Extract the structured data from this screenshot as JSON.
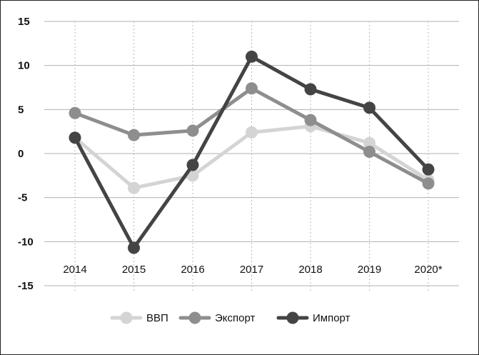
{
  "chart_data": {
    "type": "line",
    "title": "",
    "xlabel": "",
    "ylabel": "",
    "categories": [
      "2014",
      "2015",
      "2016",
      "2017",
      "2018",
      "2019",
      "2020*"
    ],
    "ylim": [
      -15,
      15
    ],
    "yticks": [
      15,
      10,
      5,
      0,
      -5,
      -10,
      -15
    ],
    "grid": true,
    "legend_position": "bottom",
    "series": [
      {
        "name": "ВВП",
        "color": "#d4d4d4",
        "values": [
          1.8,
          -3.9,
          -2.5,
          2.4,
          3.1,
          1.2,
          -3.0
        ]
      },
      {
        "name": "Экспорт",
        "color": "#8e8e8e",
        "values": [
          4.6,
          2.1,
          2.6,
          7.4,
          3.8,
          0.2,
          -3.4
        ]
      },
      {
        "name": "Импорт",
        "color": "#444444",
        "values": [
          1.8,
          -10.7,
          -1.3,
          11.0,
          7.3,
          5.2,
          -1.8
        ]
      }
    ]
  }
}
